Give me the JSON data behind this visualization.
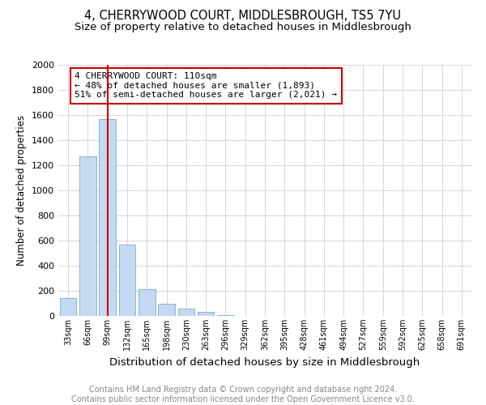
{
  "title": "4, CHERRYWOOD COURT, MIDDLESBROUGH, TS5 7YU",
  "subtitle": "Size of property relative to detached houses in Middlesbrough",
  "xlabel": "Distribution of detached houses by size in Middlesbrough",
  "ylabel": "Number of detached properties",
  "categories": [
    "33sqm",
    "66sqm",
    "99sqm",
    "132sqm",
    "165sqm",
    "198sqm",
    "230sqm",
    "263sqm",
    "296sqm",
    "329sqm",
    "362sqm",
    "395sqm",
    "428sqm",
    "461sqm",
    "494sqm",
    "527sqm",
    "559sqm",
    "592sqm",
    "625sqm",
    "658sqm",
    "691sqm"
  ],
  "values": [
    140,
    1270,
    1570,
    570,
    215,
    95,
    55,
    30,
    5,
    2,
    0,
    0,
    0,
    0,
    0,
    0,
    0,
    0,
    0,
    0,
    0
  ],
  "bar_color": "#c5d9f0",
  "bar_edge_color": "#7aadd4",
  "vline_x_index": 2.0,
  "vline_color": "#cc0000",
  "annotation_box_text": "4 CHERRYWOOD COURT: 110sqm\n← 48% of detached houses are smaller (1,893)\n51% of semi-detached houses are larger (2,021) →",
  "annotation_fontsize": 8,
  "annotation_box_color": "#cc0000",
  "ylim": [
    0,
    2000
  ],
  "yticks": [
    0,
    200,
    400,
    600,
    800,
    1000,
    1200,
    1400,
    1600,
    1800,
    2000
  ],
  "title_fontsize": 10.5,
  "subtitle_fontsize": 9.5,
  "xlabel_fontsize": 9.5,
  "ylabel_fontsize": 8.5,
  "footer_text": "Contains HM Land Registry data © Crown copyright and database right 2024.\nContains public sector information licensed under the Open Government Licence v3.0.",
  "footer_fontsize": 7,
  "background_color": "#ffffff",
  "grid_color": "#d0d0d0"
}
